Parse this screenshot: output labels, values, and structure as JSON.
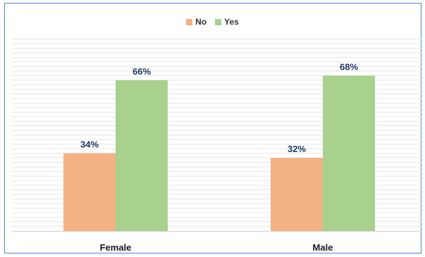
{
  "chart_data": {
    "type": "bar",
    "categories": [
      "Female",
      "Male"
    ],
    "series": [
      {
        "name": "No",
        "values": [
          34,
          32
        ],
        "labels": [
          "34%",
          "32%"
        ],
        "color": "#f4b183"
      },
      {
        "name": "Yes",
        "values": [
          66,
          68
        ],
        "labels": [
          "66%",
          "68%"
        ],
        "color": "#a9d18e"
      }
    ],
    "title": "",
    "xlabel": "",
    "ylabel": "",
    "ylim": [
      0,
      100
    ],
    "grid": true,
    "legend_position": "top-center",
    "text_color": "#1f3864",
    "gridline_color": "#e6e6e6",
    "frame_color": "#4a86c8"
  }
}
